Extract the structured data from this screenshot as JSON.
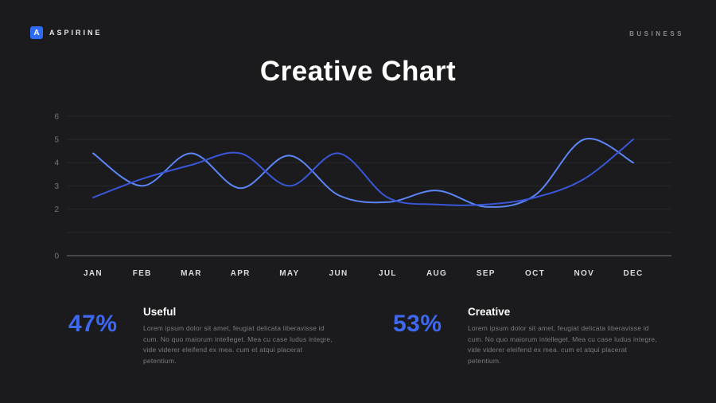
{
  "header": {
    "brand_letter": "A",
    "brand": "ASPIRINE",
    "right_label": "BUSINESS"
  },
  "title": "Creative Chart",
  "chart_data": {
    "type": "line",
    "categories": [
      "JAN",
      "FEB",
      "MAR",
      "APR",
      "MAY",
      "JUN",
      "JUL",
      "AUG",
      "SEP",
      "OCT",
      "NOV",
      "DEC"
    ],
    "series": [
      {
        "name": "Useful",
        "color": "#5c85f6",
        "values": [
          4.4,
          3.0,
          4.4,
          2.9,
          4.3,
          2.6,
          2.3,
          2.8,
          2.1,
          2.6,
          5.0,
          4.0
        ]
      },
      {
        "name": "Creative",
        "color": "#3a57d9",
        "values": [
          2.5,
          3.3,
          3.9,
          4.4,
          3.0,
          4.4,
          2.5,
          2.2,
          2.2,
          2.5,
          3.3,
          5.0
        ]
      }
    ],
    "title": "Creative Chart",
    "xlabel": "",
    "ylabel": "",
    "ylim": [
      0,
      6
    ],
    "y_tick_labels": [
      "6",
      "5",
      "4",
      "3",
      "2",
      "0"
    ],
    "grid_values": [
      1,
      2,
      3,
      4,
      5,
      6
    ],
    "axis_value": 0,
    "grid": true,
    "legend_position": "none"
  },
  "stats": [
    {
      "value": "47%",
      "label": "Useful",
      "text": "Lorem ipsum dolor sit amet, feugiat delicata liberavisse id cum. No quo maiorum intelleget. Mea cu case ludus integre, vide viderer eleifend ex mea. cum et atqui placerat petentium."
    },
    {
      "value": "53%",
      "label": "Creative",
      "text": "Lorem ipsum dolor sit amet, feugiat delicata liberavisse id cum. No quo maiorum intelleget. Mea cu case ludus integre, vide viderer eleifend ex mea. cum et atqui placerat petentium."
    }
  ],
  "colors": {
    "accent": "#3f68f0",
    "background": "#1b1b1d",
    "gridline": "#28282c",
    "axis": "#74747a",
    "x_label": "#dcdce0",
    "y_label": "#77777d"
  }
}
